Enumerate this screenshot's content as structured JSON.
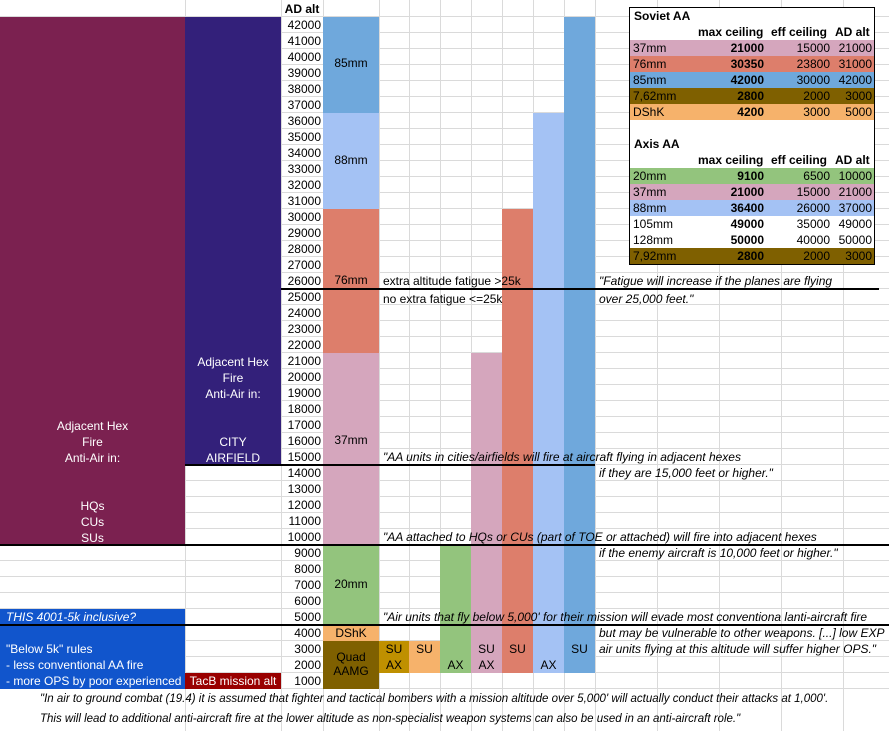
{
  "colors": {
    "maroon": "#7b2150",
    "indigo": "#33207a",
    "purple_light": "#d5a6bd",
    "salmon": "#dd7e6b",
    "blue": "#6fa8dc",
    "blue_light": "#a4c2f4",
    "green": "#93c47d",
    "orange": "#f6b26b",
    "brown": "#7f6000",
    "gold": "#bf9000",
    "bright_blue": "#1155cc",
    "dark_red": "#990000"
  },
  "header": {
    "ad_alt": "AD alt"
  },
  "altitudes": [
    "42000",
    "41000",
    "40000",
    "39000",
    "38000",
    "37000",
    "36000",
    "35000",
    "34000",
    "33000",
    "32000",
    "31000",
    "30000",
    "29000",
    "28000",
    "27000",
    "26000",
    "25000",
    "24000",
    "23000",
    "22000",
    "21000",
    "20000",
    "19000",
    "18000",
    "17000",
    "16000",
    "15000",
    "14000",
    "13000",
    "12000",
    "11000",
    "10000",
    "9000",
    "8000",
    "7000",
    "6000",
    "5000",
    "4000",
    "3000",
    "2000",
    "1000"
  ],
  "weapon_labels": {
    "w85": "85mm",
    "w88": "88mm",
    "w76": "76mm",
    "w37": "37mm",
    "w20": "20mm",
    "dshk": "DShK",
    "quad_1": "Quad",
    "quad_2": "AAMG"
  },
  "left_block": {
    "adjacent_hex": "Adjacent Hex",
    "fire": "Fire",
    "anti_air_in": "Anti-Air in:",
    "hqs": "HQs",
    "cus": "CUs",
    "sus": "SUs"
  },
  "mid_block": {
    "adjacent_hex": "Adjacent Hex",
    "fire": "Fire",
    "anti_air_in": "Anti-Air in:",
    "city": "CITY",
    "airfield": "AIRFIELD"
  },
  "bottom_left": {
    "question": "THIS 4001-5k inclusive?",
    "rules_title": "\"Below 5k\" rules",
    "rule_1": "- less conventional AA fire",
    "rule_2": "- more OPS by poor experienced",
    "tacb": "TacB mission alt"
  },
  "small_labels": {
    "su": "SU",
    "ax": "AX"
  },
  "notes": {
    "fatigue_plus": "extra altitude fatigue >25k",
    "fatigue_none": "no extra fatigue <=25k",
    "quote_fatigue_1": "\"Fatigue will increase if the planes are flying",
    "quote_fatigue_2": "over 25,000 feet.\"",
    "quote_city_1": "\"AA units in cities/airfields will fire at aircraft flying in adjacent hexes",
    "quote_city_2": "if they are 15,000 feet or higher.\"",
    "quote_hq_1": "\"AA attached to HQs or CUs (part of TOE or attached) will fire into adjacent hexes",
    "quote_hq_2": "if the enemy aircraft is 10,000 feet or higher.\"",
    "quote_below_1": "\"Air units that fly below 5,000' for their mission will evade most conventiona lanti-aircraft fire",
    "quote_below_2": "but may be vulnerable to other weapons. [...] low EXP",
    "quote_below_3": "air units flying at this altitude will suffer higher OPS.\"",
    "footer_1": "\"In air to ground combat (19.4) it is assumed that fighter and tactical bombers with a mission altitude over 5,000' will actually conduct their attacks at 1,000'.",
    "footer_2": "This will lead to additional anti-aircraft fire at the lower altitude as non-specialist weapon systems can also be used in an anti-aircraft role.\""
  },
  "soviet_table": {
    "title": "Soviet AA",
    "headers": [
      "max ceiling",
      "eff ceiling",
      "AD alt"
    ],
    "rows": [
      {
        "name": "37mm",
        "max": "21000",
        "eff": "15000",
        "ad": "21000",
        "color": "#d5a6bd"
      },
      {
        "name": "76mm",
        "max": "30350",
        "eff": "23800",
        "ad": "31000",
        "color": "#dd7e6b"
      },
      {
        "name": "85mm",
        "max": "42000",
        "eff": "30000",
        "ad": "42000",
        "color": "#6fa8dc"
      },
      {
        "name": "7,62mm",
        "max": "2800",
        "eff": "2000",
        "ad": "3000",
        "color": "#7f6000"
      },
      {
        "name": "DShK",
        "max": "4200",
        "eff": "3000",
        "ad": "5000",
        "color": "#f6b26b"
      }
    ]
  },
  "axis_table": {
    "title": "Axis AA",
    "headers": [
      "max ceiling",
      "eff ceiling",
      "AD alt"
    ],
    "rows": [
      {
        "name": "20mm",
        "max": "9100",
        "eff": "6500",
        "ad": "10000",
        "color": "#93c47d"
      },
      {
        "name": "37mm",
        "max": "21000",
        "eff": "15000",
        "ad": "21000",
        "color": "#d5a6bd"
      },
      {
        "name": "88mm",
        "max": "36400",
        "eff": "26000",
        "ad": "37000",
        "color": "#a4c2f4"
      },
      {
        "name": "105mm",
        "max": "49000",
        "eff": "35000",
        "ad": "49000",
        "color": "#ffffff"
      },
      {
        "name": "128mm",
        "max": "50000",
        "eff": "40000",
        "ad": "50000",
        "color": "#ffffff"
      },
      {
        "name": "7,92mm",
        "max": "2800",
        "eff": "2000",
        "ad": "3000",
        "color": "#7f6000"
      }
    ]
  }
}
